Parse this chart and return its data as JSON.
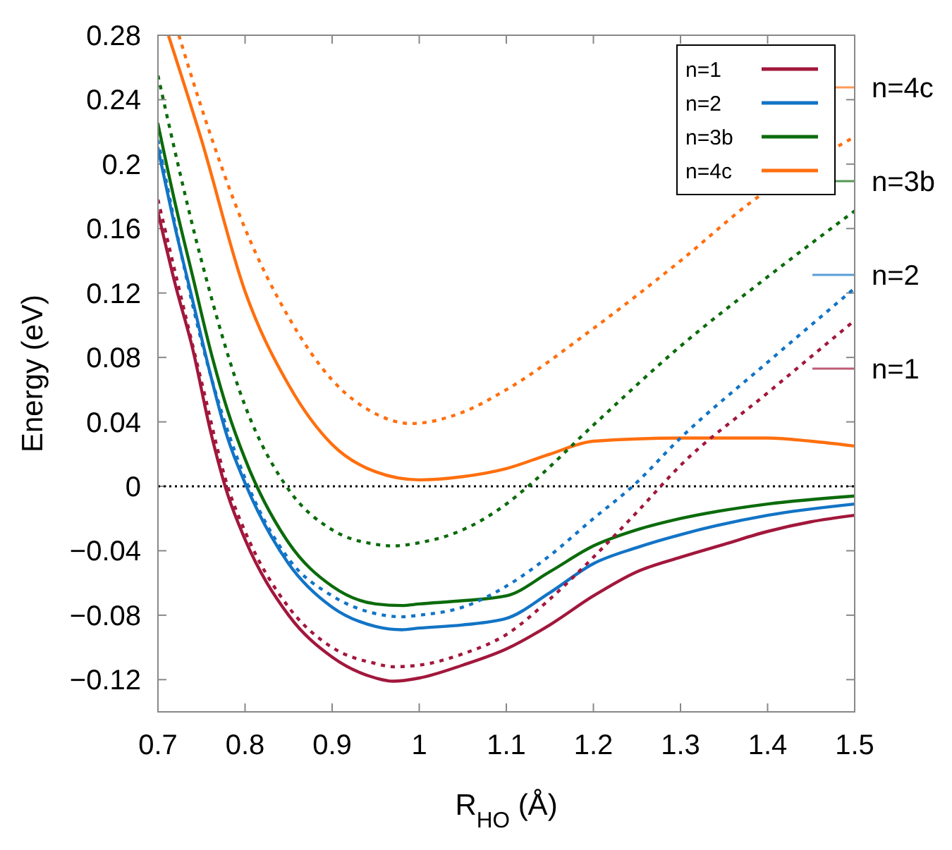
{
  "chart_data": {
    "type": "line",
    "xlabel": "R$_{HO}$ (Å)",
    "ylabel": "Energy (eV)",
    "xlim": [
      0.7,
      1.5
    ],
    "xticks": [
      0.7,
      0.8,
      0.9,
      1,
      1.1,
      1.2,
      1.3,
      1.4,
      1.5
    ],
    "ylim": [
      -0.14,
      0.28
    ],
    "yticks": [
      {
        "value": -0.12,
        "label": "−0.12"
      },
      {
        "value": -0.08,
        "label": "−0.08"
      },
      {
        "value": -0.04,
        "label": "−0.04"
      },
      0,
      0.04,
      0.08,
      0.12,
      0.16,
      0.2,
      0.24,
      0.28
    ],
    "grid": false,
    "legend": "top right",
    "marker": "none",
    "series": [
      {
        "name": "n=1",
        "color": "#a2173c",
        "line_style": "solid",
        "x": [
          0.7,
          0.72,
          0.74,
          0.76,
          0.78,
          0.8,
          0.85,
          0.9,
          0.95,
          0.97,
          1.0,
          1.05,
          1.1,
          1.15,
          1.2,
          1.25,
          1.3,
          1.35,
          1.4,
          1.45,
          1.5
        ],
        "values": [
          0.17,
          0.125,
          0.085,
          0.035,
          -0.005,
          -0.033,
          -0.08,
          -0.106,
          -0.119,
          -0.121,
          -0.119,
          -0.111,
          -0.101,
          -0.086,
          -0.068,
          -0.053,
          -0.044,
          -0.036,
          -0.028,
          -0.022,
          -0.018
        ]
      },
      {
        "name": "n=2",
        "color": "#1274c6",
        "line_style": "solid",
        "x": [
          0.7,
          0.72,
          0.74,
          0.76,
          0.78,
          0.8,
          0.85,
          0.9,
          0.95,
          0.98,
          1.0,
          1.05,
          1.1,
          1.15,
          1.2,
          1.25,
          1.3,
          1.4,
          1.5
        ],
        "values": [
          0.21,
          0.16,
          0.115,
          0.07,
          0.03,
          0.002,
          -0.048,
          -0.075,
          -0.087,
          -0.089,
          -0.088,
          -0.086,
          -0.082,
          -0.066,
          -0.048,
          -0.038,
          -0.03,
          -0.018,
          -0.011
        ]
      },
      {
        "name": "n=3b",
        "color": "#0b6b0b",
        "line_style": "solid",
        "x": [
          0.7,
          0.72,
          0.74,
          0.76,
          0.78,
          0.8,
          0.85,
          0.9,
          0.95,
          0.98,
          1.0,
          1.05,
          1.1,
          1.15,
          1.2,
          1.25,
          1.3,
          1.4,
          1.5
        ],
        "values": [
          0.225,
          0.175,
          0.13,
          0.085,
          0.047,
          0.017,
          -0.035,
          -0.062,
          -0.073,
          -0.074,
          -0.073,
          -0.071,
          -0.068,
          -0.053,
          -0.037,
          -0.027,
          -0.02,
          -0.011,
          -0.006
        ]
      },
      {
        "name": "n=4c",
        "color": "#ff6f0f",
        "line_style": "solid",
        "x": [
          0.712,
          0.75,
          0.8,
          0.85,
          0.9,
          0.95,
          1.0,
          1.05,
          1.1,
          1.15,
          1.2,
          1.3,
          1.4,
          1.45,
          1.5
        ],
        "values": [
          0.28,
          0.215,
          0.121,
          0.063,
          0.026,
          0.009,
          0.004,
          0.006,
          0.011,
          0.02,
          0.028,
          0.03,
          0.03,
          0.028,
          0.025
        ]
      },
      {
        "color": "#a2173c",
        "line_style": "dotted",
        "x": [
          0.7,
          0.75,
          0.78,
          0.8,
          0.85,
          0.9,
          0.95,
          0.97,
          1.0,
          1.05,
          1.1,
          1.15,
          1.2,
          1.25,
          1.3,
          1.4,
          1.5
        ],
        "values": [
          0.178,
          0.065,
          0.0,
          -0.028,
          -0.075,
          -0.1,
          -0.11,
          -0.112,
          -0.111,
          -0.104,
          -0.092,
          -0.07,
          -0.044,
          -0.016,
          0.013,
          0.058,
          0.103
        ]
      },
      {
        "color": "#1274c6",
        "line_style": "dotted",
        "x": [
          0.7,
          0.75,
          0.8,
          0.85,
          0.9,
          0.95,
          0.98,
          1.0,
          1.05,
          1.1,
          1.15,
          1.2,
          1.245,
          1.3,
          1.4,
          1.5
        ],
        "values": [
          0.215,
          0.09,
          0.005,
          -0.045,
          -0.068,
          -0.079,
          -0.081,
          -0.08,
          -0.075,
          -0.062,
          -0.043,
          -0.02,
          0.0,
          0.03,
          0.077,
          0.123
        ]
      },
      {
        "color": "#0b6b0b",
        "line_style": "dotted",
        "x": [
          0.7,
          0.75,
          0.8,
          0.85,
          0.9,
          0.95,
          0.97,
          1.0,
          1.05,
          1.1,
          1.125,
          1.2,
          1.3,
          1.4,
          1.5
        ],
        "values": [
          0.255,
          0.14,
          0.05,
          -0.002,
          -0.027,
          -0.036,
          -0.037,
          -0.035,
          -0.027,
          -0.011,
          0.0,
          0.038,
          0.087,
          0.13,
          0.171
        ]
      },
      {
        "color": "#ff6f0f",
        "line_style": "dotted",
        "x": [
          0.724,
          0.75,
          0.8,
          0.85,
          0.9,
          0.95,
          0.99,
          1.05,
          1.1,
          1.2,
          1.3,
          1.38,
          1.5
        ],
        "values": [
          0.28,
          0.235,
          0.16,
          0.105,
          0.066,
          0.045,
          0.039,
          0.046,
          0.06,
          0.098,
          0.14,
          0.176,
          0.217
        ]
      }
    ],
    "ref_lines": [
      {
        "axis": "y",
        "value": 0,
        "color": "#000000",
        "line_style": "dotted"
      }
    ],
    "annotations": [
      "n=4c",
      "n=3b",
      "n=2",
      "n=1"
    ]
  }
}
